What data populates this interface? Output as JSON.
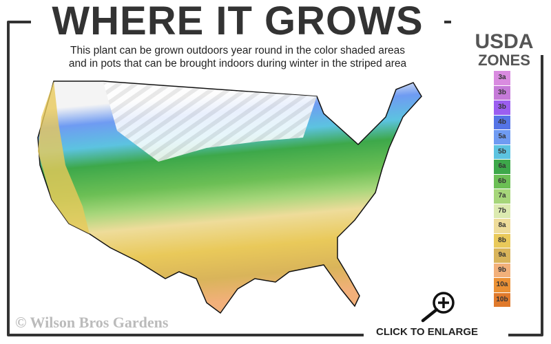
{
  "header": {
    "title": "WHERE IT GROWS",
    "subtitle_line1": "This plant can be grown outdoors year round in the color shaded areas",
    "subtitle_line2": "and in pots that can be brought indoors during winter in the striped area"
  },
  "legend": {
    "title_line1": "USDA",
    "title_line2": "ZONES",
    "zones": [
      {
        "label": "3a",
        "color": "#d98be0"
      },
      {
        "label": "3b",
        "color": "#c57ad8"
      },
      {
        "label": "3b",
        "color": "#9b5ef0"
      },
      {
        "label": "4b",
        "color": "#5574e6"
      },
      {
        "label": "5a",
        "color": "#6f9bf2"
      },
      {
        "label": "5b",
        "color": "#5cc3e0"
      },
      {
        "label": "6a",
        "color": "#3da84a"
      },
      {
        "label": "6b",
        "color": "#6cbf55"
      },
      {
        "label": "7a",
        "color": "#a6d67a"
      },
      {
        "label": "7b",
        "color": "#dceab0"
      },
      {
        "label": "8a",
        "color": "#eedc9a"
      },
      {
        "label": "8b",
        "color": "#e9c95a"
      },
      {
        "label": "9a",
        "color": "#d9b45a"
      },
      {
        "label": "9b",
        "color": "#f2b07a"
      },
      {
        "label": "10a",
        "color": "#eb9135"
      },
      {
        "label": "10b",
        "color": "#e07a2c"
      }
    ]
  },
  "footer": {
    "copyright": "© Wilson Bros Gardens",
    "enlarge_label": "CLICK TO ENLARGE"
  },
  "icons": {
    "enlarge": "magnifier-plus-icon"
  }
}
